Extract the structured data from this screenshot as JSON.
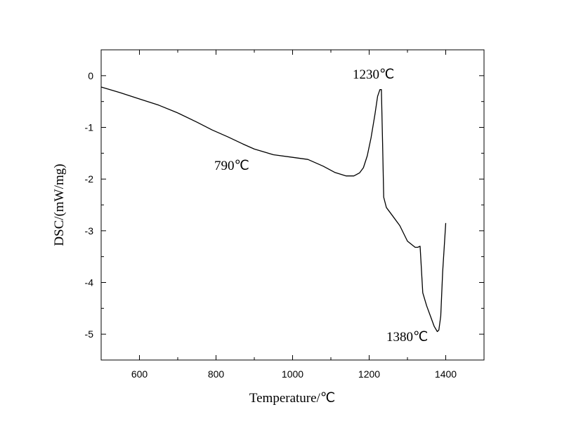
{
  "chart_data": {
    "type": "line",
    "xlabel": "Temperature/℃",
    "ylabel": "DSC/(mW/mg)",
    "xlim": [
      500,
      1500
    ],
    "ylim": [
      -5.5,
      0.5
    ],
    "xticks": [
      600,
      800,
      1000,
      1200,
      1400
    ],
    "xtick_labels": [
      "600",
      "800",
      "1000",
      "1200",
      "1400"
    ],
    "yticks": [
      0,
      -1,
      -2,
      -3,
      -4,
      -5
    ],
    "ytick_labels": [
      "0",
      "-1",
      "-2",
      "-3",
      "-4",
      "-5"
    ],
    "grid": false,
    "series": [
      {
        "x": [
          500,
          550,
          600,
          650,
          700,
          750,
          790,
          830,
          870,
          900,
          950,
          1000,
          1040,
          1080,
          1110,
          1140,
          1160,
          1175,
          1185,
          1195,
          1205,
          1215,
          1222,
          1228,
          1232,
          1235,
          1238,
          1245,
          1260,
          1280,
          1300,
          1320,
          1327,
          1333,
          1340,
          1350,
          1360,
          1370,
          1378,
          1382,
          1387,
          1392,
          1400
        ],
        "y": [
          -0.22,
          -0.33,
          -0.45,
          -0.57,
          -0.72,
          -0.9,
          -1.05,
          -1.18,
          -1.32,
          -1.42,
          -1.53,
          -1.58,
          -1.62,
          -1.75,
          -1.87,
          -1.94,
          -1.94,
          -1.88,
          -1.78,
          -1.55,
          -1.2,
          -0.75,
          -0.4,
          -0.27,
          -0.27,
          -1.3,
          -2.35,
          -2.55,
          -2.7,
          -2.9,
          -3.2,
          -3.32,
          -3.32,
          -3.3,
          -4.2,
          -4.45,
          -4.65,
          -4.85,
          -4.95,
          -4.92,
          -4.65,
          -3.8,
          -2.85
        ]
      }
    ],
    "annotations": [
      {
        "text": "1230℃",
        "x": 1230,
        "y": -0.27
      },
      {
        "text": "790℃",
        "x": 790,
        "y": -1.05
      },
      {
        "text": "1380℃",
        "x": 1380,
        "y": -4.95
      }
    ]
  }
}
